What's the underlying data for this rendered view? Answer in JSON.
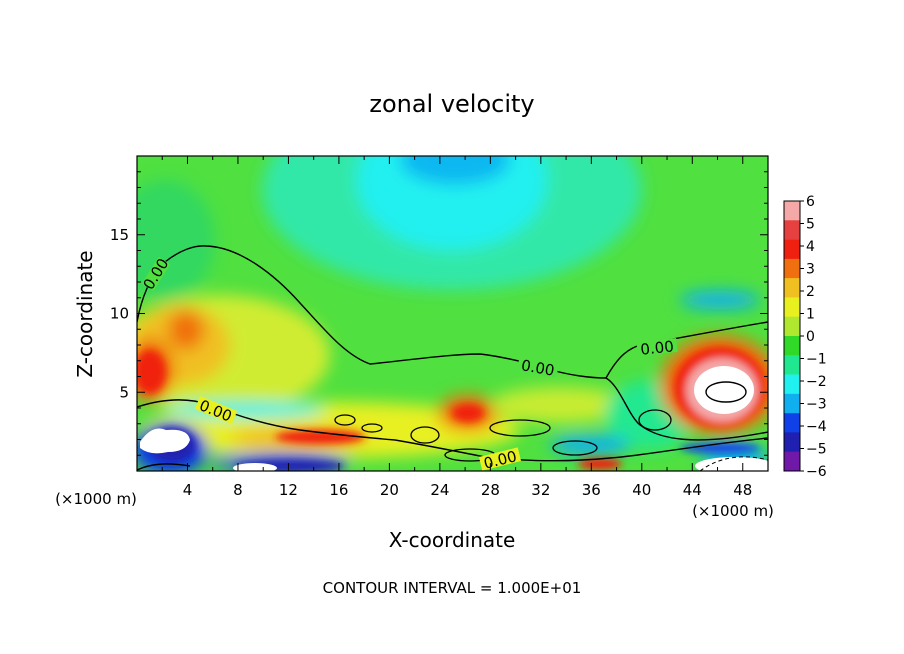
{
  "chart_data": {
    "type": "heatmap",
    "title": "zonal velocity",
    "xlabel": "X-coordinate",
    "ylabel": "Z-coordinate",
    "x_unit": "(×1000 m)",
    "x_unit_right": "(×1000 m)",
    "xlim": [
      0,
      50
    ],
    "ylim": [
      0,
      20
    ],
    "x_ticks": [
      4,
      8,
      12,
      16,
      20,
      24,
      28,
      32,
      36,
      40,
      44,
      48
    ],
    "y_ticks": [
      5,
      10,
      15
    ],
    "colorbar": {
      "ticks": [
        6,
        5,
        4,
        3,
        2,
        1,
        0,
        -1,
        -2,
        -3,
        -4,
        -5,
        -6
      ],
      "colors": [
        "#f4a8a8",
        "#e64040",
        "#f02010",
        "#f07010",
        "#f0c020",
        "#e8f020",
        "#b0e830",
        "#30d828",
        "#20e890",
        "#20f0f0",
        "#10b0f0",
        "#1040e8",
        "#2020b0",
        "#7018a8"
      ]
    },
    "zero_contour_labels": [
      "0.00",
      "0.00",
      "0.00",
      "0.00",
      "0.00"
    ],
    "footnote": "CONTOUR INTERVAL = 1.000E+01"
  }
}
